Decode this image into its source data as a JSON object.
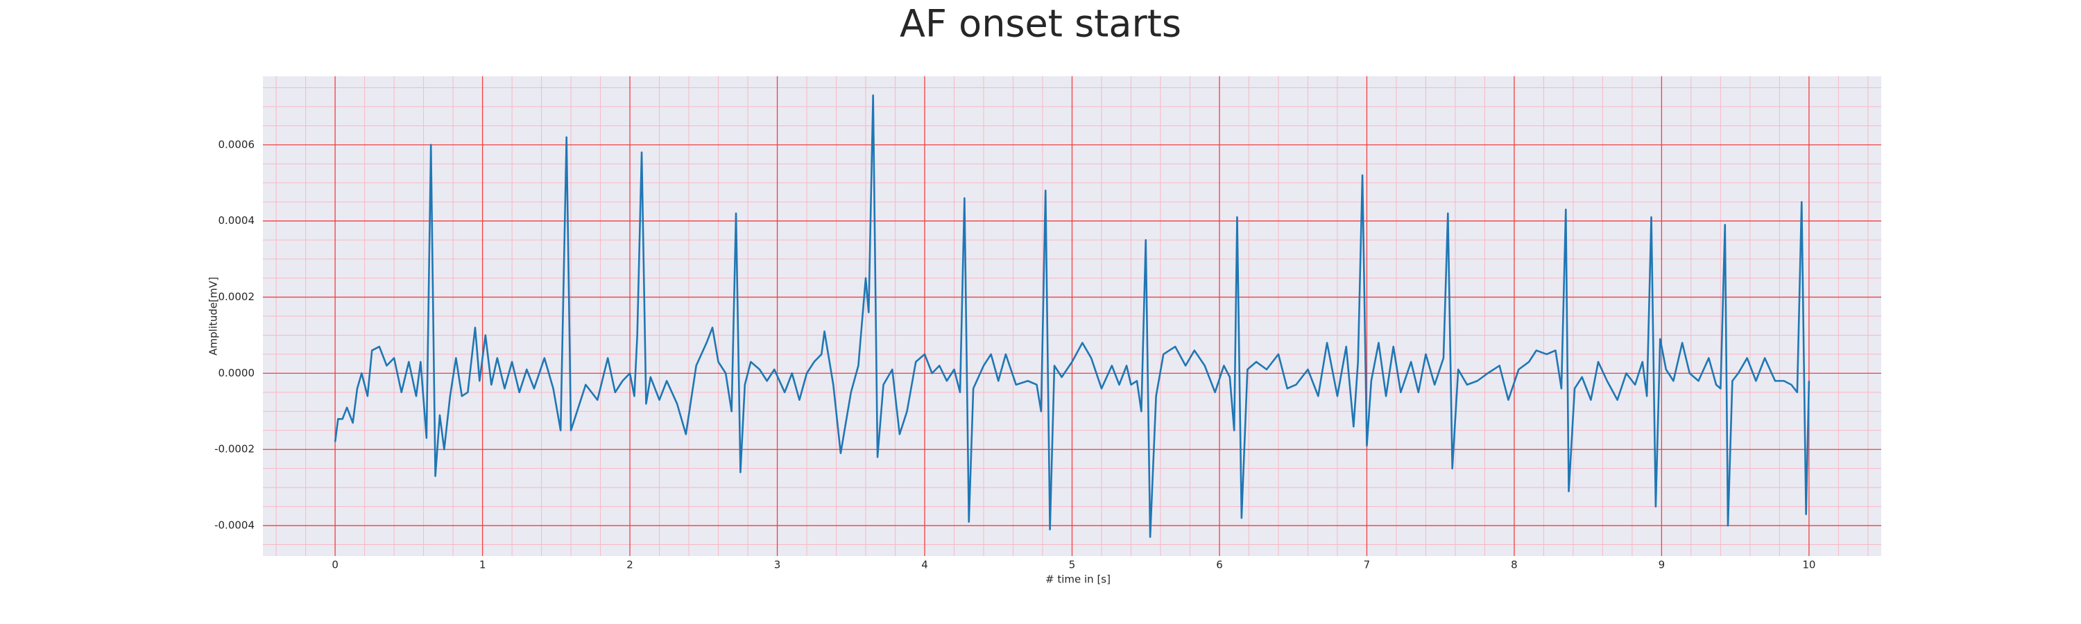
{
  "chart_data": {
    "type": "line",
    "title": "AF onset starts",
    "xlabel": "# time in [s]",
    "ylabel": "Amplitude[mV]",
    "color": "#1f77b4",
    "grid": true,
    "minor_grid": true,
    "xlim": [
      -0.49,
      10.49
    ],
    "ylim": [
      -0.00048,
      0.00078
    ],
    "xticks": [
      0,
      1,
      2,
      3,
      4,
      5,
      6,
      7,
      8,
      9,
      10
    ],
    "yticks": [
      -0.0004,
      -0.0002,
      {
        "value": 0,
        "label": "0.0000"
      },
      0.0002,
      0.0004,
      0.0006
    ],
    "xminorticks": [
      -0.4,
      -0.2,
      0.2,
      0.4,
      0.6,
      0.8,
      1.2,
      1.4,
      1.6,
      1.8,
      2.2,
      2.4,
      2.6,
      2.8,
      3.2,
      3.4,
      3.6,
      3.8,
      4.2,
      4.4,
      4.6,
      4.8,
      5.2,
      5.4,
      5.6,
      5.8,
      6.2,
      6.4,
      6.6,
      6.8,
      7.2,
      7.4,
      7.6,
      7.8,
      8.2,
      8.4,
      8.6,
      8.8,
      9.2,
      9.4,
      9.6,
      9.8,
      10.2,
      10.4
    ],
    "yminorticks": [
      -0.00045,
      -0.00035,
      -0.0003,
      -0.00025,
      -0.00015,
      -0.0001,
      -5e-05,
      5e-05,
      0.0001,
      0.00015,
      0.00025,
      0.0003,
      0.00035,
      0.00045,
      0.0005,
      0.00055,
      0.00065,
      0.0007,
      0.00075
    ],
    "x": [
      0,
      0.02,
      0.05,
      0.08,
      0.12,
      0.15,
      0.18,
      0.22,
      0.25,
      0.3,
      0.35,
      0.4,
      0.45,
      0.5,
      0.55,
      0.58,
      0.62,
      0.65,
      0.68,
      0.71,
      0.74,
      0.78,
      0.82,
      0.86,
      0.9,
      0.95,
      0.98,
      1.02,
      1.06,
      1.1,
      1.15,
      1.2,
      1.25,
      1.3,
      1.35,
      1.42,
      1.48,
      1.53,
      1.57,
      1.6,
      1.65,
      1.7,
      1.78,
      1.85,
      1.9,
      1.95,
      2,
      2.03,
      2.05,
      2.08,
      2.11,
      2.14,
      2.2,
      2.25,
      2.32,
      2.38,
      2.45,
      2.52,
      2.56,
      2.6,
      2.65,
      2.69,
      2.72,
      2.75,
      2.78,
      2.82,
      2.88,
      2.93,
      2.98,
      3.05,
      3.1,
      3.15,
      3.2,
      3.25,
      3.3,
      3.32,
      3.38,
      3.43,
      3.5,
      3.55,
      3.6,
      3.62,
      3.65,
      3.68,
      3.72,
      3.78,
      3.83,
      3.88,
      3.94,
      4,
      4.05,
      4.1,
      4.15,
      4.2,
      4.24,
      4.27,
      4.3,
      4.33,
      4.4,
      4.45,
      4.5,
      4.55,
      4.62,
      4.7,
      4.76,
      4.79,
      4.82,
      4.85,
      4.88,
      4.93,
      5,
      5.07,
      5.13,
      5.2,
      5.27,
      5.32,
      5.37,
      5.4,
      5.44,
      5.47,
      5.5,
      5.53,
      5.57,
      5.62,
      5.7,
      5.77,
      5.83,
      5.9,
      5.97,
      6.03,
      6.07,
      6.1,
      6.12,
      6.15,
      6.19,
      6.25,
      6.32,
      6.4,
      6.46,
      6.52,
      6.6,
      6.67,
      6.73,
      6.8,
      6.86,
      6.91,
      6.94,
      6.97,
      7,
      7.03,
      7.08,
      7.13,
      7.18,
      7.23,
      7.3,
      7.35,
      7.4,
      7.46,
      7.52,
      7.55,
      7.58,
      7.62,
      7.68,
      7.75,
      7.82,
      7.9,
      7.96,
      8.03,
      8.1,
      8.15,
      8.22,
      8.28,
      8.32,
      8.35,
      8.37,
      8.41,
      8.46,
      8.52,
      8.57,
      8.63,
      8.7,
      8.76,
      8.82,
      8.87,
      8.9,
      8.93,
      8.96,
      8.99,
      9.03,
      9.08,
      9.14,
      9.19,
      9.25,
      9.32,
      9.37,
      9.4,
      9.43,
      9.45,
      9.48,
      9.52,
      9.58,
      9.64,
      9.7,
      9.77,
      9.83,
      9.88,
      9.92,
      9.95,
      9.98,
      10
    ],
    "values": [
      -0.00018,
      -0.00012,
      -0.00012,
      -9e-05,
      -0.00013,
      -4e-05,
      0,
      -6e-05,
      6e-05,
      7e-05,
      2e-05,
      4e-05,
      -5e-05,
      3e-05,
      -6e-05,
      3e-05,
      -0.00017,
      0.0006,
      -0.00027,
      -0.00011,
      -0.0002,
      -6e-05,
      4e-05,
      -6e-05,
      -5e-05,
      0.00012,
      -2e-05,
      0.0001,
      -3e-05,
      4e-05,
      -4e-05,
      3e-05,
      -5e-05,
      1e-05,
      -4e-05,
      4e-05,
      -4e-05,
      -0.00015,
      0.00062,
      -0.00015,
      -9e-05,
      -3e-05,
      -7e-05,
      4e-05,
      -5e-05,
      -2e-05,
      0,
      -6e-05,
      0.0001,
      0.00058,
      -8e-05,
      -1e-05,
      -7e-05,
      -2e-05,
      -8e-05,
      -0.00016,
      2e-05,
      8e-05,
      0.00012,
      3e-05,
      0,
      -0.0001,
      0.00042,
      -0.00026,
      -3e-05,
      3e-05,
      1e-05,
      -2e-05,
      1e-05,
      -5e-05,
      0,
      -7e-05,
      0,
      3e-05,
      5e-05,
      0.00011,
      -3e-05,
      -0.00021,
      -5e-05,
      2e-05,
      0.00025,
      0.00016,
      0.00073,
      -0.00022,
      -3e-05,
      1e-05,
      -0.00016,
      -0.0001,
      3e-05,
      5e-05,
      0,
      2e-05,
      -2e-05,
      1e-05,
      -5e-05,
      0.00046,
      -0.00039,
      -4e-05,
      2e-05,
      5e-05,
      -2e-05,
      5e-05,
      -3e-05,
      -2e-05,
      -3e-05,
      -0.0001,
      0.00048,
      -0.00041,
      2e-05,
      -1e-05,
      3e-05,
      8e-05,
      4e-05,
      -4e-05,
      2e-05,
      -3e-05,
      2e-05,
      -3e-05,
      -2e-05,
      -0.0001,
      0.00035,
      -0.00043,
      -6e-05,
      5e-05,
      7e-05,
      2e-05,
      6e-05,
      2e-05,
      -5e-05,
      2e-05,
      -1e-05,
      -0.00015,
      0.00041,
      -0.00038,
      1e-05,
      3e-05,
      1e-05,
      5e-05,
      -4e-05,
      -3e-05,
      1e-05,
      -6e-05,
      8e-05,
      -6e-05,
      7e-05,
      -0.00014,
      3e-05,
      0.00052,
      -0.00019,
      -2e-05,
      8e-05,
      -6e-05,
      7e-05,
      -5e-05,
      3e-05,
      -5e-05,
      5e-05,
      -3e-05,
      4e-05,
      0.00042,
      -0.00025,
      1e-05,
      -3e-05,
      -2e-05,
      0,
      2e-05,
      -7e-05,
      1e-05,
      3e-05,
      6e-05,
      5e-05,
      6e-05,
      -4e-05,
      0.00043,
      -0.00031,
      -4e-05,
      -1e-05,
      -7e-05,
      3e-05,
      -2e-05,
      -7e-05,
      0,
      -3e-05,
      3e-05,
      -6e-05,
      0.00041,
      -0.00035,
      9e-05,
      1e-05,
      -2e-05,
      8e-05,
      0,
      -2e-05,
      4e-05,
      -3e-05,
      -4e-05,
      0.00039,
      -0.0004,
      -2e-05,
      0,
      4e-05,
      -2e-05,
      4e-05,
      -2e-05,
      -2e-05,
      -3e-05,
      -5e-05,
      0.00045,
      -0.00037,
      -2e-05
    ]
  }
}
